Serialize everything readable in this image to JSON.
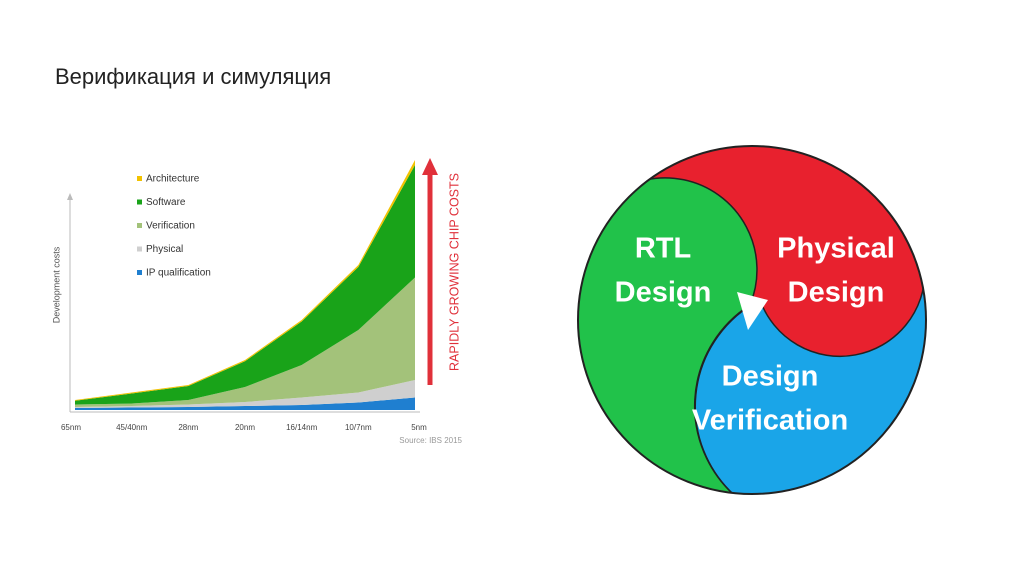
{
  "title": "Верификация и симуляция",
  "chart_data": {
    "type": "stacked-area",
    "y_label": "Development costs",
    "annotation": "RAPIDLY GROWING CHIP COSTS",
    "source": "Source: IBS 2015",
    "categories": [
      "65nm",
      "45/40nm",
      "28nm",
      "20nm",
      "16/14nm",
      "10/7nm",
      "5nm"
    ],
    "ylim": [
      0,
      100
    ],
    "series": [
      {
        "name": "IP qualification",
        "color": "#1f7fd0",
        "values": [
          0.8,
          1,
          1.2,
          1.6,
          2,
          3,
          5
        ]
      },
      {
        "name": "Physical",
        "color": "#cfcfcf",
        "values": [
          0.4,
          0.6,
          1,
          1.6,
          3,
          4,
          7
        ]
      },
      {
        "name": "Verification",
        "color": "#a3c27a",
        "values": [
          1,
          1,
          1.8,
          6,
          13,
          25,
          41
        ]
      },
      {
        "name": "Software",
        "color": "#19a319",
        "values": [
          1.5,
          4,
          5.6,
          10.3,
          17.4,
          25.2,
          45
        ]
      },
      {
        "name": "Architecture",
        "color": "#f2c200",
        "values": [
          0.3,
          0.4,
          0.4,
          0.5,
          0.6,
          0.8,
          2
        ]
      }
    ]
  },
  "diagram": {
    "nodes": [
      {
        "lines": [
          "RTL",
          "Design"
        ]
      },
      {
        "lines": [
          "Physical",
          "Design"
        ]
      },
      {
        "lines": [
          "Design",
          "Verification"
        ]
      }
    ]
  }
}
